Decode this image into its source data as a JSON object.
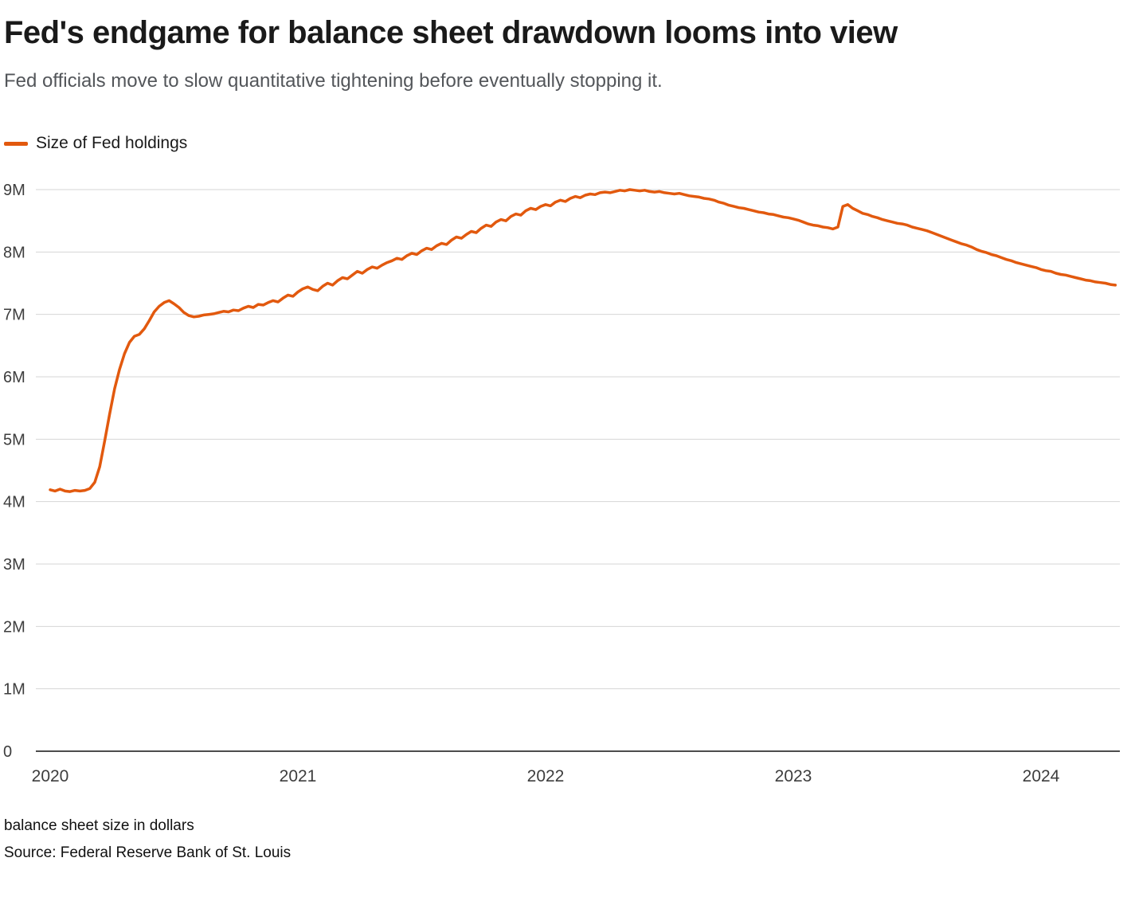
{
  "header": {
    "title": "Fed's endgame for balance sheet drawdown looms into view",
    "subtitle": "Fed officials move to slow quantitative tightening before eventually stopping it."
  },
  "legend": {
    "label": "Size of Fed holdings",
    "color": "#e2590e"
  },
  "footer": {
    "note": "balance sheet size in dollars",
    "source": "Source: Federal Reserve Bank of St. Louis"
  },
  "chart_data": {
    "type": "line",
    "title": "Fed's endgame for balance sheet drawdown looms into view",
    "xlabel": "",
    "ylabel": "",
    "y_unit": "M",
    "ylim": [
      0,
      9
    ],
    "grid": true,
    "legend_position": "top-left",
    "x_ticks": [
      2020,
      2021,
      2022,
      2023,
      2024
    ],
    "y_ticks": [
      "0",
      "1M",
      "2M",
      "3M",
      "4M",
      "5M",
      "6M",
      "7M",
      "8M",
      "9M"
    ],
    "series": [
      {
        "name": "Size of Fed holdings",
        "color": "#e2590e",
        "points": [
          [
            2020.0,
            4.19
          ],
          [
            2020.02,
            4.17
          ],
          [
            2020.04,
            4.2
          ],
          [
            2020.06,
            4.17
          ],
          [
            2020.08,
            4.16
          ],
          [
            2020.1,
            4.18
          ],
          [
            2020.12,
            4.17
          ],
          [
            2020.14,
            4.18
          ],
          [
            2020.16,
            4.21
          ],
          [
            2020.18,
            4.31
          ],
          [
            2020.2,
            4.56
          ],
          [
            2020.22,
            4.97
          ],
          [
            2020.24,
            5.4
          ],
          [
            2020.26,
            5.81
          ],
          [
            2020.28,
            6.12
          ],
          [
            2020.3,
            6.37
          ],
          [
            2020.32,
            6.55
          ],
          [
            2020.34,
            6.65
          ],
          [
            2020.36,
            6.68
          ],
          [
            2020.38,
            6.77
          ],
          [
            2020.4,
            6.9
          ],
          [
            2020.42,
            7.04
          ],
          [
            2020.44,
            7.13
          ],
          [
            2020.46,
            7.19
          ],
          [
            2020.48,
            7.22
          ],
          [
            2020.5,
            7.17
          ],
          [
            2020.52,
            7.11
          ],
          [
            2020.54,
            7.03
          ],
          [
            2020.56,
            6.98
          ],
          [
            2020.58,
            6.96
          ],
          [
            2020.6,
            6.97
          ],
          [
            2020.62,
            6.99
          ],
          [
            2020.64,
            7.0
          ],
          [
            2020.66,
            7.01
          ],
          [
            2020.68,
            7.03
          ],
          [
            2020.7,
            7.05
          ],
          [
            2020.72,
            7.04
          ],
          [
            2020.74,
            7.07
          ],
          [
            2020.76,
            7.06
          ],
          [
            2020.78,
            7.1
          ],
          [
            2020.8,
            7.13
          ],
          [
            2020.82,
            7.11
          ],
          [
            2020.84,
            7.16
          ],
          [
            2020.86,
            7.15
          ],
          [
            2020.88,
            7.19
          ],
          [
            2020.9,
            7.22
          ],
          [
            2020.92,
            7.2
          ],
          [
            2020.94,
            7.26
          ],
          [
            2020.96,
            7.31
          ],
          [
            2020.98,
            7.29
          ],
          [
            2021.0,
            7.36
          ],
          [
            2021.02,
            7.41
          ],
          [
            2021.04,
            7.44
          ],
          [
            2021.06,
            7.4
          ],
          [
            2021.08,
            7.38
          ],
          [
            2021.1,
            7.45
          ],
          [
            2021.12,
            7.5
          ],
          [
            2021.14,
            7.47
          ],
          [
            2021.16,
            7.54
          ],
          [
            2021.18,
            7.59
          ],
          [
            2021.2,
            7.57
          ],
          [
            2021.22,
            7.63
          ],
          [
            2021.24,
            7.69
          ],
          [
            2021.26,
            7.66
          ],
          [
            2021.28,
            7.72
          ],
          [
            2021.3,
            7.76
          ],
          [
            2021.32,
            7.74
          ],
          [
            2021.34,
            7.79
          ],
          [
            2021.36,
            7.83
          ],
          [
            2021.38,
            7.86
          ],
          [
            2021.4,
            7.9
          ],
          [
            2021.42,
            7.88
          ],
          [
            2021.44,
            7.94
          ],
          [
            2021.46,
            7.98
          ],
          [
            2021.48,
            7.96
          ],
          [
            2021.5,
            8.02
          ],
          [
            2021.52,
            8.06
          ],
          [
            2021.54,
            8.04
          ],
          [
            2021.56,
            8.1
          ],
          [
            2021.58,
            8.14
          ],
          [
            2021.6,
            8.12
          ],
          [
            2021.62,
            8.19
          ],
          [
            2021.64,
            8.24
          ],
          [
            2021.66,
            8.22
          ],
          [
            2021.68,
            8.28
          ],
          [
            2021.7,
            8.33
          ],
          [
            2021.72,
            8.31
          ],
          [
            2021.74,
            8.38
          ],
          [
            2021.76,
            8.43
          ],
          [
            2021.78,
            8.41
          ],
          [
            2021.8,
            8.48
          ],
          [
            2021.82,
            8.52
          ],
          [
            2021.84,
            8.5
          ],
          [
            2021.86,
            8.57
          ],
          [
            2021.88,
            8.61
          ],
          [
            2021.9,
            8.59
          ],
          [
            2021.92,
            8.66
          ],
          [
            2021.94,
            8.7
          ],
          [
            2021.96,
            8.68
          ],
          [
            2021.98,
            8.73
          ],
          [
            2022.0,
            8.76
          ],
          [
            2022.02,
            8.74
          ],
          [
            2022.04,
            8.8
          ],
          [
            2022.06,
            8.83
          ],
          [
            2022.08,
            8.81
          ],
          [
            2022.1,
            8.86
          ],
          [
            2022.12,
            8.89
          ],
          [
            2022.14,
            8.87
          ],
          [
            2022.16,
            8.91
          ],
          [
            2022.18,
            8.93
          ],
          [
            2022.2,
            8.92
          ],
          [
            2022.22,
            8.95
          ],
          [
            2022.24,
            8.96
          ],
          [
            2022.26,
            8.95
          ],
          [
            2022.28,
            8.97
          ],
          [
            2022.3,
            8.99
          ],
          [
            2022.32,
            8.98
          ],
          [
            2022.34,
            9.0
          ],
          [
            2022.36,
            8.99
          ],
          [
            2022.38,
            8.98
          ],
          [
            2022.4,
            8.99
          ],
          [
            2022.42,
            8.97
          ],
          [
            2022.44,
            8.96
          ],
          [
            2022.46,
            8.97
          ],
          [
            2022.48,
            8.95
          ],
          [
            2022.5,
            8.94
          ],
          [
            2022.52,
            8.93
          ],
          [
            2022.54,
            8.94
          ],
          [
            2022.56,
            8.92
          ],
          [
            2022.58,
            8.9
          ],
          [
            2022.6,
            8.89
          ],
          [
            2022.62,
            8.88
          ],
          [
            2022.64,
            8.86
          ],
          [
            2022.66,
            8.85
          ],
          [
            2022.68,
            8.83
          ],
          [
            2022.7,
            8.8
          ],
          [
            2022.72,
            8.78
          ],
          [
            2022.74,
            8.75
          ],
          [
            2022.76,
            8.73
          ],
          [
            2022.78,
            8.71
          ],
          [
            2022.8,
            8.7
          ],
          [
            2022.82,
            8.68
          ],
          [
            2022.84,
            8.66
          ],
          [
            2022.86,
            8.64
          ],
          [
            2022.88,
            8.63
          ],
          [
            2022.9,
            8.61
          ],
          [
            2022.92,
            8.6
          ],
          [
            2022.94,
            8.58
          ],
          [
            2022.96,
            8.56
          ],
          [
            2022.98,
            8.55
          ],
          [
            2023.0,
            8.53
          ],
          [
            2023.02,
            8.51
          ],
          [
            2023.04,
            8.48
          ],
          [
            2023.06,
            8.45
          ],
          [
            2023.08,
            8.43
          ],
          [
            2023.1,
            8.42
          ],
          [
            2023.12,
            8.4
          ],
          [
            2023.14,
            8.39
          ],
          [
            2023.16,
            8.37
          ],
          [
            2023.18,
            8.4
          ],
          [
            2023.2,
            8.73
          ],
          [
            2023.22,
            8.76
          ],
          [
            2023.24,
            8.7
          ],
          [
            2023.26,
            8.66
          ],
          [
            2023.28,
            8.62
          ],
          [
            2023.3,
            8.6
          ],
          [
            2023.32,
            8.57
          ],
          [
            2023.34,
            8.55
          ],
          [
            2023.36,
            8.52
          ],
          [
            2023.38,
            8.5
          ],
          [
            2023.4,
            8.48
          ],
          [
            2023.42,
            8.46
          ],
          [
            2023.44,
            8.45
          ],
          [
            2023.46,
            8.43
          ],
          [
            2023.48,
            8.4
          ],
          [
            2023.5,
            8.38
          ],
          [
            2023.52,
            8.36
          ],
          [
            2023.54,
            8.34
          ],
          [
            2023.56,
            8.31
          ],
          [
            2023.58,
            8.28
          ],
          [
            2023.6,
            8.25
          ],
          [
            2023.62,
            8.22
          ],
          [
            2023.64,
            8.19
          ],
          [
            2023.66,
            8.16
          ],
          [
            2023.68,
            8.13
          ],
          [
            2023.7,
            8.11
          ],
          [
            2023.72,
            8.08
          ],
          [
            2023.74,
            8.04
          ],
          [
            2023.76,
            8.01
          ],
          [
            2023.78,
            7.99
          ],
          [
            2023.8,
            7.96
          ],
          [
            2023.82,
            7.94
          ],
          [
            2023.84,
            7.91
          ],
          [
            2023.86,
            7.88
          ],
          [
            2023.88,
            7.86
          ],
          [
            2023.9,
            7.83
          ],
          [
            2023.92,
            7.81
          ],
          [
            2023.94,
            7.79
          ],
          [
            2023.96,
            7.77
          ],
          [
            2023.98,
            7.75
          ],
          [
            2024.0,
            7.72
          ],
          [
            2024.02,
            7.7
          ],
          [
            2024.04,
            7.69
          ],
          [
            2024.06,
            7.66
          ],
          [
            2024.08,
            7.64
          ],
          [
            2024.1,
            7.63
          ],
          [
            2024.12,
            7.61
          ],
          [
            2024.14,
            7.59
          ],
          [
            2024.16,
            7.57
          ],
          [
            2024.18,
            7.55
          ],
          [
            2024.2,
            7.54
          ],
          [
            2024.22,
            7.52
          ],
          [
            2024.24,
            7.51
          ],
          [
            2024.26,
            7.5
          ],
          [
            2024.28,
            7.48
          ],
          [
            2024.3,
            7.47
          ]
        ]
      }
    ],
    "style": {
      "line_color": "#e2590e",
      "grid_color": "#d6d6d6",
      "axis_color": "#111111",
      "tick_label_color": "#3d3d3d"
    }
  }
}
